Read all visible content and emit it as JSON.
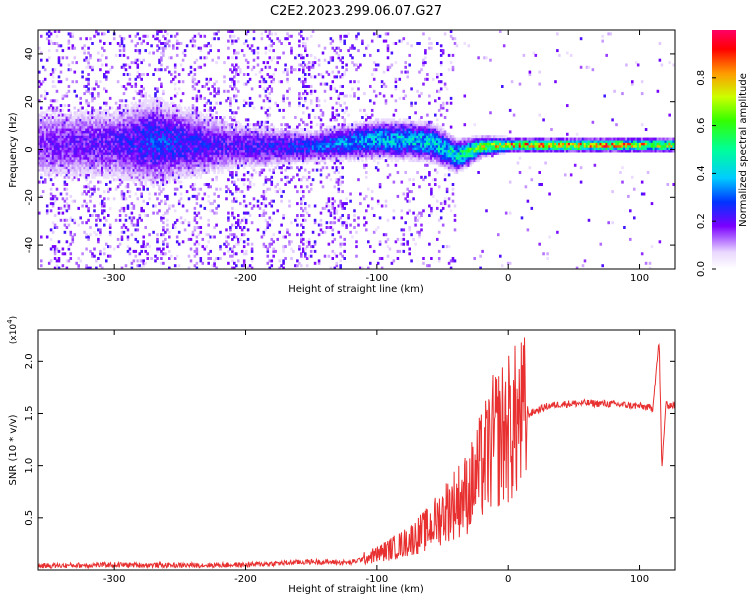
{
  "title": "C2E2.2023.299.06.07.G27",
  "chart_data": [
    {
      "type": "heatmap",
      "xlabel": "Height of straight line (km)",
      "ylabel": "Frequency (Hz)",
      "xlim": [
        -358,
        127
      ],
      "ylim": [
        -50,
        50
      ],
      "xticks": [
        -300,
        -200,
        -100,
        0,
        100
      ],
      "xtick_labels": [
        "-300",
        "-200",
        "-100",
        "0",
        "100"
      ],
      "yticks": [
        -40,
        -20,
        0,
        20,
        40
      ],
      "ytick_labels": [
        "-40",
        "-20",
        "0",
        "20",
        "40"
      ],
      "grid": false,
      "colorbar": {
        "label": "Normalized spectral amplitude",
        "range": [
          0,
          1
        ],
        "ticks": [
          0.0,
          0.2,
          0.4,
          0.6,
          0.8
        ],
        "tick_labels": [
          "0.0",
          "0.2",
          "0.4",
          "0.6",
          "0.8"
        ],
        "colormap": "rainbow"
      },
      "signal_track": [
        {
          "x": -358,
          "freq": 2,
          "amp": 0.18,
          "spread": 12
        },
        {
          "x": -300,
          "freq": 2,
          "amp": 0.22,
          "spread": 12
        },
        {
          "x": -270,
          "freq": 3,
          "amp": 0.3,
          "spread": 14
        },
        {
          "x": -210,
          "freq": 1,
          "amp": 0.22,
          "spread": 8
        },
        {
          "x": -150,
          "freq": 1,
          "amp": 0.3,
          "spread": 5
        },
        {
          "x": -100,
          "freq": 4,
          "amp": 0.42,
          "spread": 6
        },
        {
          "x": -60,
          "freq": 3,
          "amp": 0.45,
          "spread": 6
        },
        {
          "x": -40,
          "freq": -3,
          "amp": 0.5,
          "spread": 5
        },
        {
          "x": -20,
          "freq": 1,
          "amp": 0.7,
          "spread": 3
        },
        {
          "x": 0,
          "freq": 1.5,
          "amp": 0.85,
          "spread": 2
        },
        {
          "x": 60,
          "freq": 1.5,
          "amp": 0.88,
          "spread": 2
        },
        {
          "x": 100,
          "freq": 1.5,
          "amp": 0.85,
          "spread": 2
        },
        {
          "x": 127,
          "freq": 1.5,
          "amp": 0.8,
          "spread": 2
        }
      ]
    },
    {
      "type": "line",
      "xlabel": "Height of straight line (km)",
      "ylabel": "SNR (10 * v/v)",
      "y_multiplier_label": "(x10",
      "y_multiplier_exp": "4",
      "y_multiplier_close": ")",
      "xlim": [
        -358,
        127
      ],
      "ylim": [
        0,
        23000
      ],
      "xticks": [
        -300,
        -200,
        -100,
        0,
        100
      ],
      "xtick_labels": [
        "-300",
        "-200",
        "-100",
        "0",
        "100"
      ],
      "yticks": [
        5000,
        10000,
        15000,
        20000
      ],
      "ytick_labels": [
        "0.5",
        "1.0",
        "1.5",
        "2.0"
      ],
      "grid": false,
      "series": [
        {
          "color": "#e83030",
          "points": [
            {
              "x": -358,
              "y": 400
            },
            {
              "x": -300,
              "y": 500
            },
            {
              "x": -250,
              "y": 450
            },
            {
              "x": -200,
              "y": 500
            },
            {
              "x": -150,
              "y": 800
            },
            {
              "x": -120,
              "y": 700
            },
            {
              "x": -100,
              "y": 1500
            },
            {
              "x": -80,
              "y": 2500
            },
            {
              "x": -60,
              "y": 4000
            },
            {
              "x": -45,
              "y": 6000
            },
            {
              "x": -30,
              "y": 7500
            },
            {
              "x": -20,
              "y": 10000
            },
            {
              "x": -10,
              "y": 12500
            },
            {
              "x": 0,
              "y": 13500
            },
            {
              "x": 10,
              "y": 14500
            },
            {
              "x": 20,
              "y": 15200
            },
            {
              "x": 30,
              "y": 15700
            },
            {
              "x": 40,
              "y": 15900
            },
            {
              "x": 60,
              "y": 16000
            },
            {
              "x": 80,
              "y": 15900
            },
            {
              "x": 100,
              "y": 15700
            },
            {
              "x": 110,
              "y": 15500
            },
            {
              "x": 115,
              "y": 22000
            },
            {
              "x": 117,
              "y": 9500
            },
            {
              "x": 120,
              "y": 15800
            },
            {
              "x": 127,
              "y": 15800
            }
          ]
        }
      ]
    }
  ]
}
